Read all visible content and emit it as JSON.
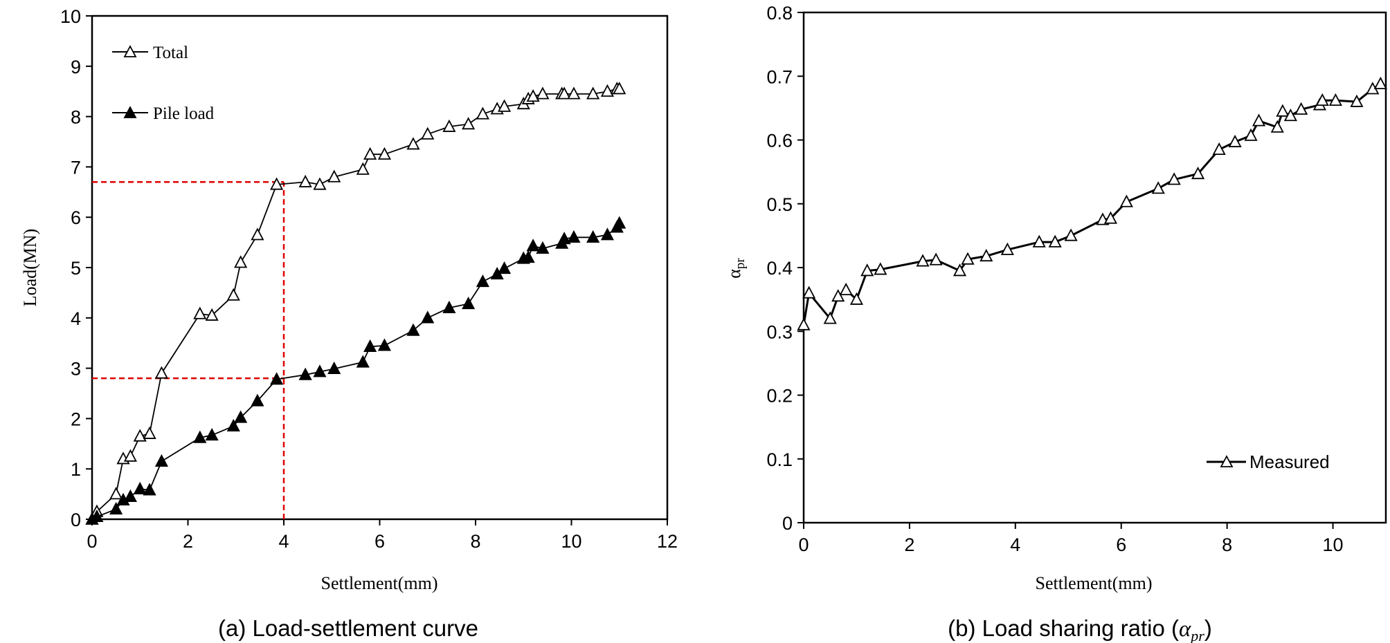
{
  "chart_data": [
    {
      "type": "line",
      "xlabel": "Settlement(mm)",
      "ylabel": "Load(MN)",
      "xlim": [
        0,
        12
      ],
      "ylim": [
        0,
        10
      ],
      "xticks": [
        "0",
        "2",
        "4",
        "6",
        "8",
        "10",
        "12"
      ],
      "yticks": [
        "0",
        "1",
        "2",
        "3",
        "4",
        "5",
        "6",
        "7",
        "8",
        "9",
        "10"
      ],
      "grid": false,
      "legend_position": "top-left",
      "caption": "(a) Load-settlement curve",
      "series": [
        {
          "name": "Total",
          "marker": "open-triangle",
          "color": "#000000",
          "x": [
            0,
            0.1,
            0.5,
            0.65,
            0.8,
            1.0,
            1.2,
            1.45,
            2.25,
            2.5,
            2.95,
            3.1,
            3.45,
            3.85,
            4.45,
            4.75,
            5.05,
            5.65,
            5.8,
            6.1,
            6.7,
            7.0,
            7.45,
            7.85,
            8.15,
            8.45,
            8.6,
            9.0,
            9.1,
            9.2,
            9.4,
            9.8,
            9.85,
            10.05,
            10.45,
            10.75,
            10.95,
            11.0
          ],
          "y": [
            0,
            0.15,
            0.5,
            1.2,
            1.25,
            1.65,
            1.7,
            2.9,
            4.08,
            4.05,
            4.45,
            5.1,
            5.65,
            6.65,
            6.7,
            6.65,
            6.8,
            6.95,
            7.25,
            7.25,
            7.45,
            7.65,
            7.8,
            7.85,
            8.05,
            8.15,
            8.2,
            8.25,
            8.35,
            8.4,
            8.45,
            8.45,
            8.45,
            8.45,
            8.45,
            8.5,
            8.55,
            8.55
          ]
        },
        {
          "name": "Pile load",
          "marker": "filled-triangle",
          "color": "#000000",
          "x": [
            0,
            0.1,
            0.5,
            0.65,
            0.8,
            1.0,
            1.2,
            1.45,
            2.25,
            2.5,
            2.95,
            3.1,
            3.45,
            3.85,
            4.45,
            4.75,
            5.05,
            5.65,
            5.8,
            6.1,
            6.7,
            7.0,
            7.45,
            7.85,
            8.15,
            8.45,
            8.6,
            9.0,
            9.1,
            9.2,
            9.4,
            9.8,
            9.85,
            10.05,
            10.45,
            10.75,
            10.95,
            11.0
          ],
          "y": [
            0,
            0.05,
            0.2,
            0.38,
            0.45,
            0.6,
            0.58,
            1.15,
            1.62,
            1.67,
            1.85,
            2.02,
            2.35,
            2.78,
            2.87,
            2.93,
            2.99,
            3.12,
            3.43,
            3.45,
            3.75,
            4.0,
            4.2,
            4.28,
            4.72,
            4.87,
            4.98,
            5.18,
            5.2,
            5.43,
            5.38,
            5.48,
            5.57,
            5.6,
            5.6,
            5.65,
            5.8,
            5.88
          ]
        }
      ],
      "reference_lines": [
        {
          "color": "#e00000",
          "style": "dashed",
          "from": [
            0,
            6.7
          ],
          "to": [
            4,
            6.7
          ]
        },
        {
          "color": "#e00000",
          "style": "dashed",
          "from": [
            0,
            2.8
          ],
          "to": [
            4,
            2.8
          ]
        },
        {
          "color": "#e00000",
          "style": "dashed",
          "from": [
            4,
            0
          ],
          "to": [
            4,
            6.7
          ]
        }
      ]
    },
    {
      "type": "line",
      "xlabel": "Settlement(mm)",
      "ylabel_base": "α",
      "ylabel_sub": "pr",
      "xlim": [
        0,
        11
      ],
      "ylim": [
        0,
        0.8
      ],
      "xticks": [
        "0",
        "2",
        "4",
        "6",
        "8",
        "10"
      ],
      "yticks": [
        "0",
        "0.1",
        "0.2",
        "0.3",
        "0.4",
        "0.5",
        "0.6",
        "0.7",
        "0.8"
      ],
      "grid": false,
      "legend_position": "bottom-right",
      "caption_text": "(b) Load sharing ratio (",
      "caption_symbol": "α",
      "caption_sub": "pr",
      "caption_end": ")",
      "series": [
        {
          "name": "Measured",
          "marker": "open-triangle",
          "color": "#000000",
          "x": [
            0,
            0.1,
            0.5,
            0.65,
            0.8,
            1.0,
            1.2,
            1.45,
            2.25,
            2.5,
            2.95,
            3.1,
            3.45,
            3.85,
            4.45,
            4.75,
            5.05,
            5.65,
            5.8,
            6.1,
            6.7,
            7.0,
            7.45,
            7.85,
            8.15,
            8.45,
            8.6,
            8.95,
            9.05,
            9.2,
            9.4,
            9.75,
            9.8,
            10.05,
            10.45,
            10.75,
            10.9
          ],
          "y": [
            0.31,
            0.36,
            0.32,
            0.355,
            0.365,
            0.35,
            0.395,
            0.397,
            0.41,
            0.412,
            0.395,
            0.413,
            0.418,
            0.428,
            0.44,
            0.44,
            0.45,
            0.475,
            0.477,
            0.503,
            0.524,
            0.538,
            0.547,
            0.585,
            0.597,
            0.607,
            0.63,
            0.62,
            0.645,
            0.638,
            0.648,
            0.655,
            0.662,
            0.662,
            0.66,
            0.68,
            0.688
          ]
        }
      ]
    }
  ]
}
